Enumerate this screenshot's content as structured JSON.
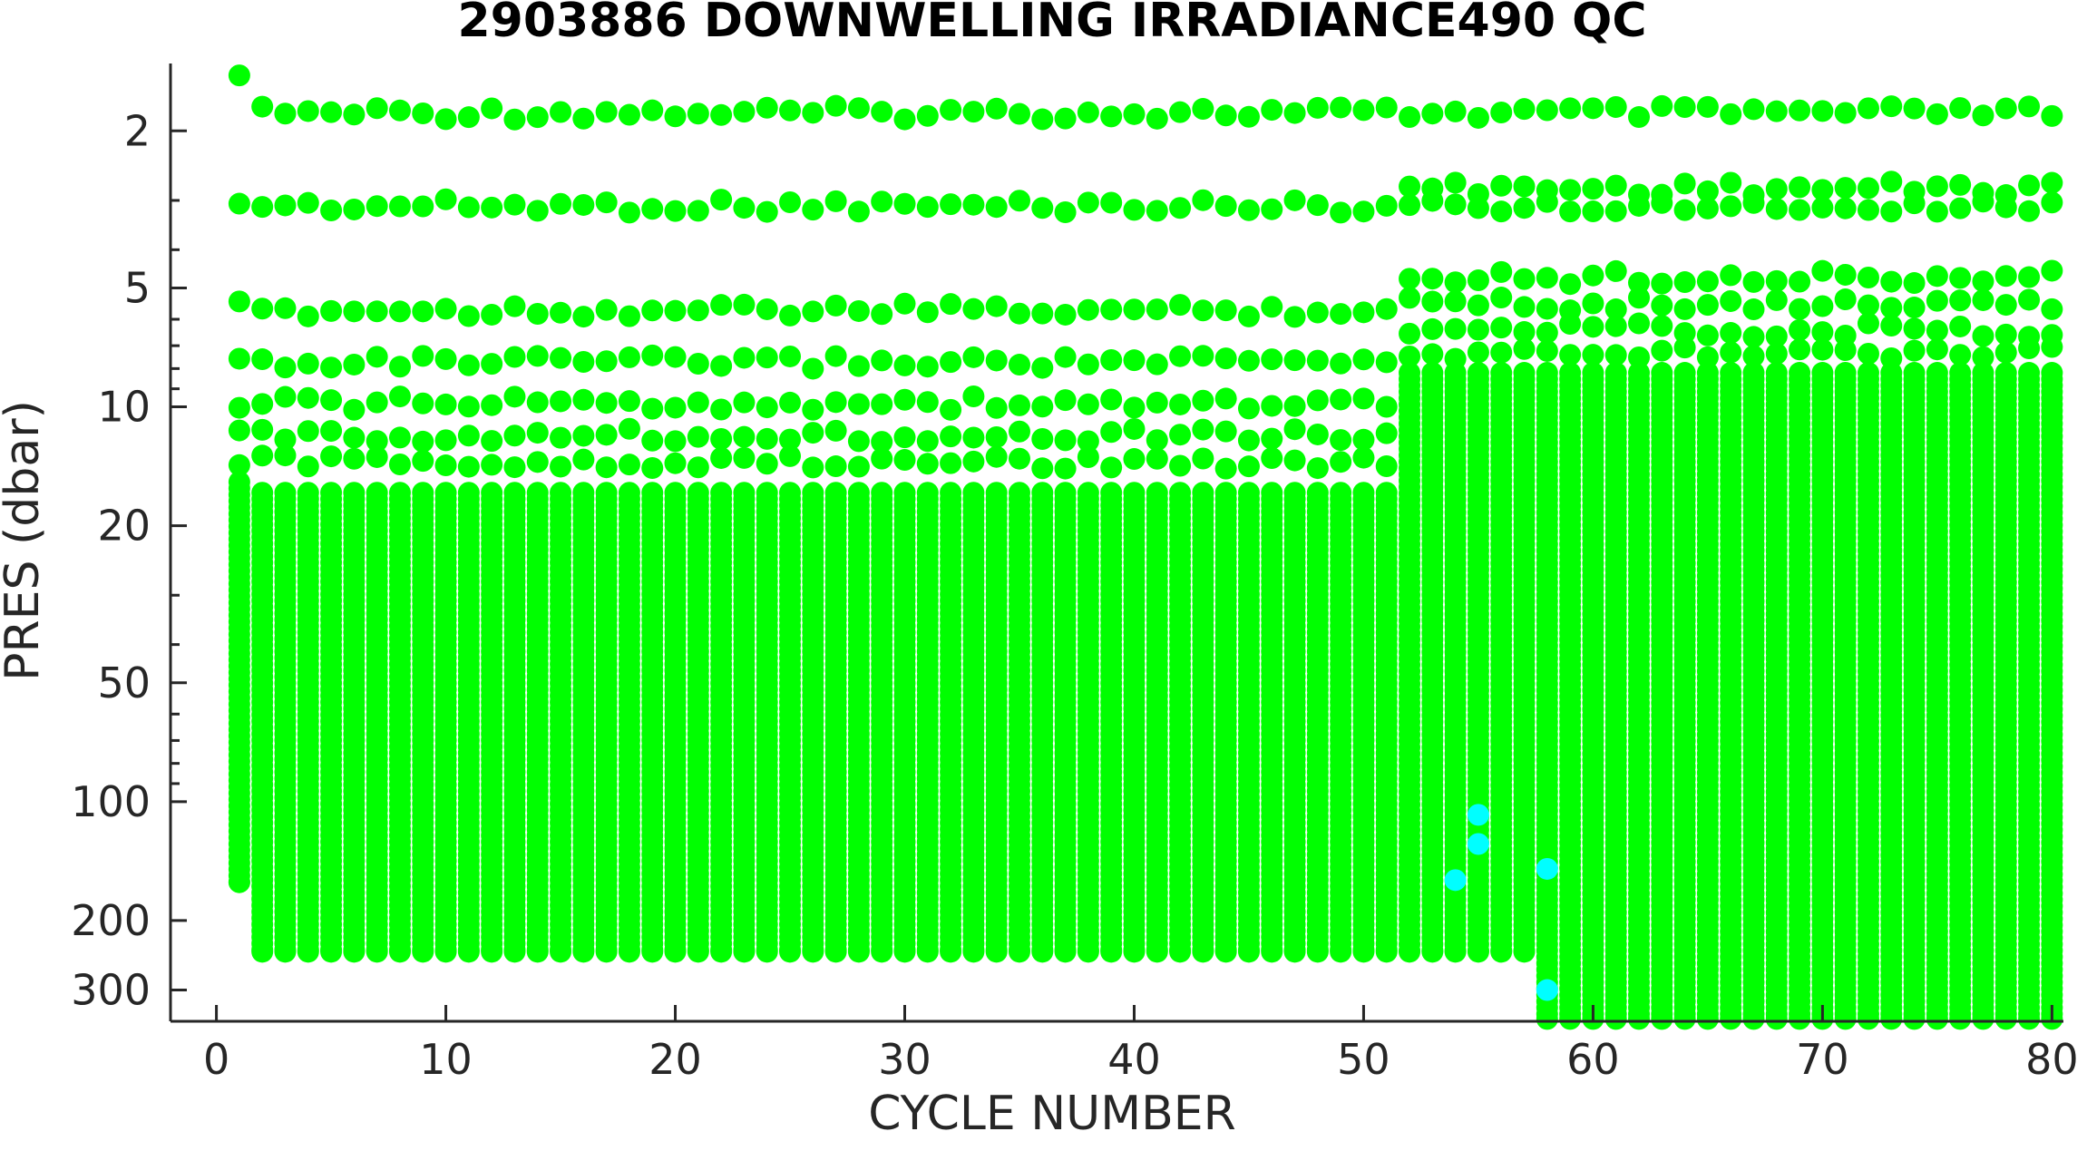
{
  "chart_data": {
    "type": "scatter",
    "title": "2903886  DOWNWELLING IRRADIANCE490 QC",
    "xlabel": "CYCLE NUMBER",
    "ylabel": "PRES (dbar)",
    "xlim": [
      -2,
      80.5
    ],
    "ylim": [
      1.35,
      360
    ],
    "y_scale": "log",
    "y_reversed": true,
    "grid": false,
    "legend": "none",
    "x_ticks": [
      0,
      10,
      20,
      30,
      40,
      50,
      60,
      70,
      80
    ],
    "x_tick_labels": [
      "0",
      "10",
      "20",
      "30",
      "40",
      "50",
      "60",
      "70",
      "80"
    ],
    "y_ticks": [
      2,
      5,
      10,
      20,
      50,
      100,
      200,
      300
    ],
    "y_tick_labels": [
      "2",
      "5",
      "10",
      "20",
      "50",
      "100",
      "200",
      "300"
    ],
    "colors": {
      "qc_good": "#00ff00",
      "qc_other": "#00ffff"
    },
    "profiles": [
      {
        "cycles": [
          1,
          1
        ],
        "surface_levels": [
          1.4,
          3.0,
          5.6,
          7.6,
          9.8,
          11.8,
          13.7
        ],
        "continuous_from": 15.5,
        "max_pres": 160,
        "qc_color": "qc_good"
      },
      {
        "cycles": [
          2,
          51
        ],
        "surface_levels": [
          1.8,
          3.1,
          5.7,
          7.7,
          9.8,
          11.8,
          13.8
        ],
        "continuous_from": 16.5,
        "max_pres": 240,
        "qc_color": "qc_good"
      },
      {
        "cycles": [
          52,
          57
        ],
        "surface_levels": [
          1.8,
          2.8,
          3.1,
          4.7,
          5.5,
          6.4,
          7.3
        ],
        "continuous_from": 8.2,
        "max_pres": 240,
        "qc_color": "qc_good"
      },
      {
        "cycles": [
          58,
          80
        ],
        "surface_levels": [
          1.8,
          2.8,
          3.1,
          4.7,
          5.5,
          6.4,
          7.3
        ],
        "continuous_from": 8.2,
        "max_pres": 355,
        "qc_color": "qc_good"
      }
    ],
    "flagged_points": [
      {
        "x": 54,
        "y": 158
      },
      {
        "x": 55,
        "y": 108
      },
      {
        "x": 55,
        "y": 128
      },
      {
        "x": 58,
        "y": 148
      },
      {
        "x": 58,
        "y": 300
      }
    ]
  }
}
